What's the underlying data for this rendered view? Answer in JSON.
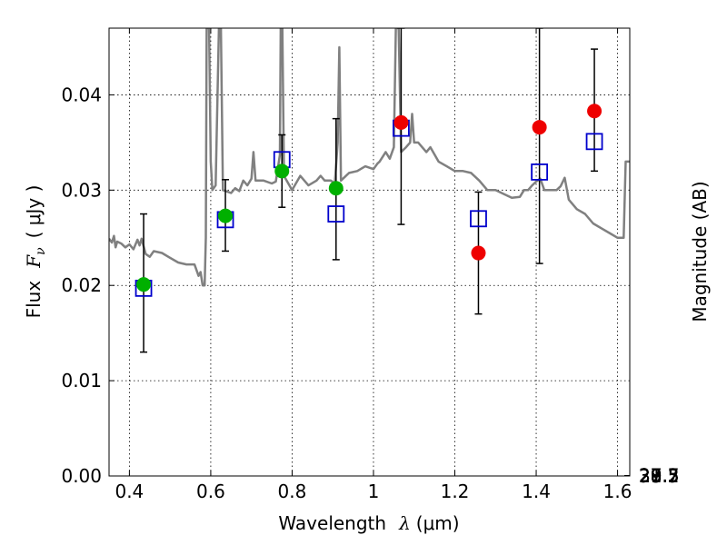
{
  "chart_data": {
    "type": "scatter",
    "xlabel_prefix": "Wavelength",
    "xlabel_symbol": "λ",
    "xlabel_unit": "(μm)",
    "ylabel_left_prefix": "Flux",
    "ylabel_left_symbol": "F",
    "ylabel_left_subscript": "ν",
    "ylabel_left_unit": "( μJy )",
    "ylabel_right": "Magnitude (AB)",
    "xlim": [
      0.35,
      1.63
    ],
    "ylim": [
      0.0,
      0.047
    ],
    "grid": true,
    "x_ticks": [
      {
        "value": 0.4,
        "label": "0.4"
      },
      {
        "value": 0.6,
        "label": "0.6"
      },
      {
        "value": 0.8,
        "label": "0.8"
      },
      {
        "value": 1.0,
        "label": "1"
      },
      {
        "value": 1.2,
        "label": "1.2"
      },
      {
        "value": 1.4,
        "label": "1.4"
      },
      {
        "value": 1.6,
        "label": "1.6"
      }
    ],
    "y_ticks": [
      {
        "value": 0.0,
        "label": "0.00"
      },
      {
        "value": 0.01,
        "label": "0.01"
      },
      {
        "value": 0.02,
        "label": "0.02"
      },
      {
        "value": 0.03,
        "label": "0.03"
      },
      {
        "value": 0.04,
        "label": "0.04"
      }
    ],
    "mag_ticks": [
      {
        "value": 27.3,
        "label": "27.3"
      },
      {
        "value": 27.5,
        "label": "27.5"
      },
      {
        "value": 27.7,
        "label": "27.7"
      },
      {
        "value": 28,
        "label": "28"
      },
      {
        "value": 28.2,
        "label": "28.2"
      },
      {
        "value": 28.5,
        "label": "28.5"
      },
      {
        "value": 29,
        "label": "29"
      },
      {
        "value": 29.5,
        "label": "29.5"
      },
      {
        "value": 30,
        "label": "30"
      },
      {
        "value": 31,
        "label": "31"
      }
    ],
    "colors": {
      "template": "#808080",
      "observed_green": "#00b000",
      "observed_red": "#ee0000",
      "model_box": "#0000cc",
      "error_bar": "#000000"
    },
    "observed": [
      {
        "x": 0.435,
        "y": 0.0201,
        "err_low": 0.013,
        "err_high": 0.0275,
        "color": "green"
      },
      {
        "x": 0.636,
        "y": 0.0273,
        "err_low": 0.0236,
        "err_high": 0.0311,
        "color": "green"
      },
      {
        "x": 0.775,
        "y": 0.032,
        "err_low": 0.0282,
        "err_high": 0.0358,
        "color": "green"
      },
      {
        "x": 0.908,
        "y": 0.0302,
        "err_low": 0.0227,
        "err_high": 0.0375,
        "color": "green"
      },
      {
        "x": 1.068,
        "y": 0.0371,
        "err_low": 0.0264,
        "err_high": 0.047,
        "color": "red"
      },
      {
        "x": 1.258,
        "y": 0.0234,
        "err_low": 0.017,
        "err_high": 0.0298,
        "color": "red"
      },
      {
        "x": 1.408,
        "y": 0.0366,
        "err_low": 0.0223,
        "err_high": 0.047,
        "color": "red"
      },
      {
        "x": 1.543,
        "y": 0.0383,
        "err_low": 0.032,
        "err_high": 0.0448,
        "color": "red"
      }
    ],
    "model": [
      {
        "x": 0.435,
        "y": 0.0197
      },
      {
        "x": 0.636,
        "y": 0.0269
      },
      {
        "x": 0.775,
        "y": 0.0332
      },
      {
        "x": 0.908,
        "y": 0.0275
      },
      {
        "x": 1.068,
        "y": 0.0365
      },
      {
        "x": 1.258,
        "y": 0.027
      },
      {
        "x": 1.408,
        "y": 0.0319
      },
      {
        "x": 1.543,
        "y": 0.0351
      }
    ],
    "template_spectrum": [
      [
        0.35,
        0.0249
      ],
      [
        0.357,
        0.0245
      ],
      [
        0.362,
        0.0252
      ],
      [
        0.366,
        0.024
      ],
      [
        0.37,
        0.0246
      ],
      [
        0.38,
        0.0244
      ],
      [
        0.39,
        0.024
      ],
      [
        0.4,
        0.0243
      ],
      [
        0.41,
        0.0238
      ],
      [
        0.42,
        0.0248
      ],
      [
        0.425,
        0.0242
      ],
      [
        0.43,
        0.0249
      ],
      [
        0.44,
        0.0233
      ],
      [
        0.45,
        0.023
      ],
      [
        0.46,
        0.0236
      ],
      [
        0.48,
        0.0234
      ],
      [
        0.5,
        0.0229
      ],
      [
        0.52,
        0.0224
      ],
      [
        0.54,
        0.0222
      ],
      [
        0.56,
        0.0222
      ],
      [
        0.57,
        0.021
      ],
      [
        0.575,
        0.0214
      ],
      [
        0.58,
        0.02
      ],
      [
        0.585,
        0.02
      ],
      [
        0.588,
        0.025
      ],
      [
        0.59,
        0.047
      ],
      [
        0.596,
        0.047
      ],
      [
        0.6,
        0.033
      ],
      [
        0.604,
        0.03
      ],
      [
        0.612,
        0.0305
      ],
      [
        0.62,
        0.047
      ],
      [
        0.625,
        0.047
      ],
      [
        0.63,
        0.03
      ],
      [
        0.65,
        0.0297
      ],
      [
        0.66,
        0.0302
      ],
      [
        0.67,
        0.0299
      ],
      [
        0.68,
        0.031
      ],
      [
        0.69,
        0.0305
      ],
      [
        0.7,
        0.0312
      ],
      [
        0.705,
        0.034
      ],
      [
        0.71,
        0.031
      ],
      [
        0.73,
        0.031
      ],
      [
        0.75,
        0.0307
      ],
      [
        0.76,
        0.0309
      ],
      [
        0.77,
        0.0337
      ],
      [
        0.772,
        0.047
      ],
      [
        0.776,
        0.047
      ],
      [
        0.78,
        0.0315
      ],
      [
        0.8,
        0.03
      ],
      [
        0.82,
        0.0315
      ],
      [
        0.84,
        0.0305
      ],
      [
        0.86,
        0.031
      ],
      [
        0.87,
        0.0315
      ],
      [
        0.88,
        0.031
      ],
      [
        0.895,
        0.031
      ],
      [
        0.905,
        0.0307
      ],
      [
        0.912,
        0.035
      ],
      [
        0.916,
        0.045
      ],
      [
        0.92,
        0.031
      ],
      [
        0.94,
        0.0318
      ],
      [
        0.96,
        0.032
      ],
      [
        0.98,
        0.0325
      ],
      [
        1.0,
        0.0322
      ],
      [
        1.01,
        0.0328
      ],
      [
        1.015,
        0.033
      ],
      [
        1.03,
        0.034
      ],
      [
        1.04,
        0.0333
      ],
      [
        1.05,
        0.0345
      ],
      [
        1.055,
        0.047
      ],
      [
        1.062,
        0.047
      ],
      [
        1.068,
        0.034
      ],
      [
        1.08,
        0.0345
      ],
      [
        1.09,
        0.035
      ],
      [
        1.095,
        0.038
      ],
      [
        1.1,
        0.035
      ],
      [
        1.11,
        0.035
      ],
      [
        1.13,
        0.034
      ],
      [
        1.14,
        0.0345
      ],
      [
        1.16,
        0.033
      ],
      [
        1.18,
        0.0325
      ],
      [
        1.2,
        0.032
      ],
      [
        1.22,
        0.032
      ],
      [
        1.24,
        0.0318
      ],
      [
        1.26,
        0.031
      ],
      [
        1.28,
        0.03
      ],
      [
        1.3,
        0.03
      ],
      [
        1.32,
        0.0296
      ],
      [
        1.34,
        0.0292
      ],
      [
        1.36,
        0.0293
      ],
      [
        1.37,
        0.03
      ],
      [
        1.38,
        0.03
      ],
      [
        1.39,
        0.0305
      ],
      [
        1.4,
        0.0309
      ],
      [
        1.41,
        0.0312
      ],
      [
        1.42,
        0.03
      ],
      [
        1.44,
        0.03
      ],
      [
        1.45,
        0.03
      ],
      [
        1.46,
        0.0304
      ],
      [
        1.47,
        0.0313
      ],
      [
        1.48,
        0.029
      ],
      [
        1.5,
        0.028
      ],
      [
        1.52,
        0.0275
      ],
      [
        1.54,
        0.0265
      ],
      [
        1.56,
        0.026
      ],
      [
        1.58,
        0.0255
      ],
      [
        1.6,
        0.025
      ],
      [
        1.615,
        0.025
      ],
      [
        1.62,
        0.033
      ],
      [
        1.63,
        0.033
      ]
    ]
  }
}
